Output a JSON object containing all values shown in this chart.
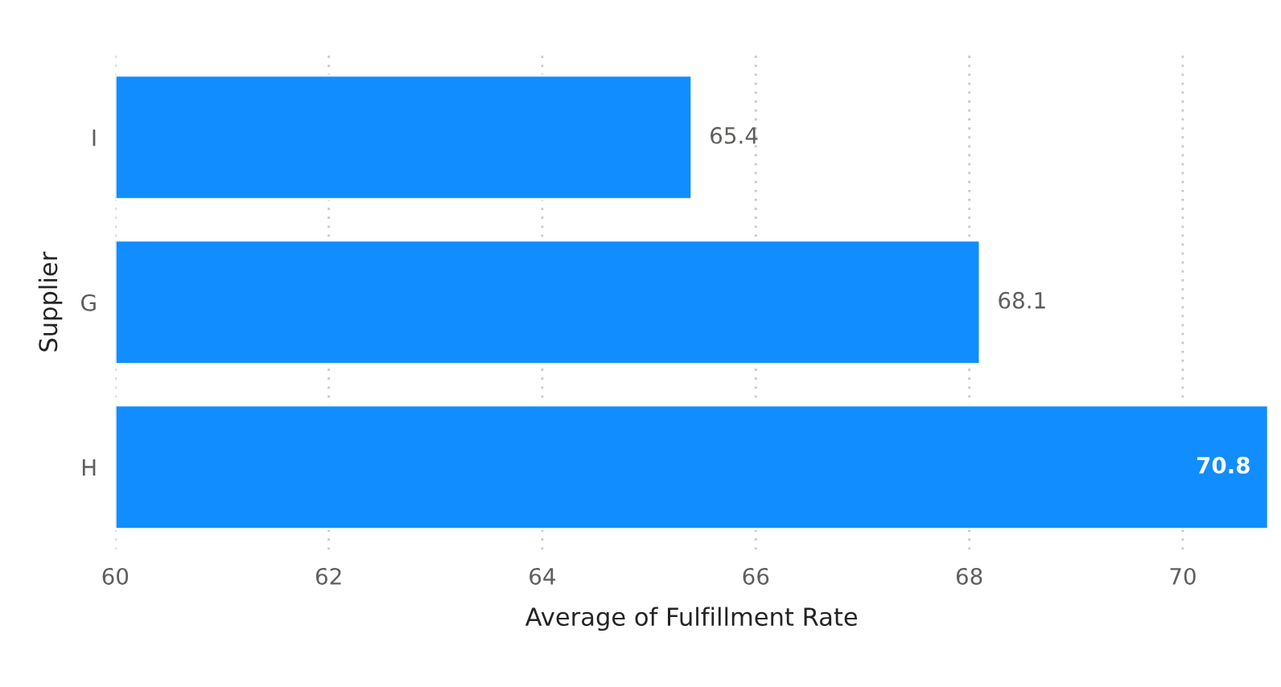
{
  "chart_data": {
    "type": "bar",
    "orientation": "horizontal",
    "xlabel": "Average of Fulfillment Rate",
    "ylabel": "Supplier",
    "categories": [
      "I",
      "G",
      "H"
    ],
    "values": [
      65.4,
      68.1,
      70.8
    ],
    "color": "#118dff",
    "xlim": [
      60,
      70.8
    ],
    "xticks": [
      60,
      62,
      64,
      66,
      68,
      70
    ],
    "grid": "x",
    "data_labels": true
  }
}
